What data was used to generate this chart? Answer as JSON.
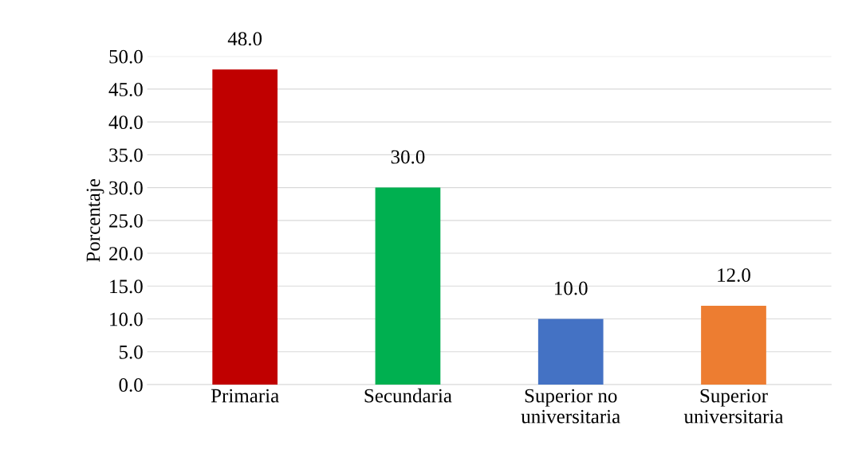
{
  "chart_data": {
    "type": "bar",
    "ylabel": "Porcentaje",
    "categories": [
      "Primaria",
      "Secundaria",
      "Superior no\nuniversitaria",
      "Superior\nuniversitaria"
    ],
    "values": [
      48,
      30,
      10,
      12
    ],
    "colors": [
      "#c00000",
      "#00b050",
      "#4472c4",
      "#ed7d31"
    ],
    "value_labels": [
      "48.0",
      "30.0",
      "10.0",
      "12.0"
    ],
    "ylim": [
      0,
      50
    ],
    "yticks": [
      {
        "value": 0,
        "label": "0.0"
      },
      {
        "value": 5,
        "label": "5.0"
      },
      {
        "value": 10,
        "label": "10.0"
      },
      {
        "value": 15,
        "label": "15.0"
      },
      {
        "value": 20,
        "label": "20.0"
      },
      {
        "value": 25,
        "label": "25.0"
      },
      {
        "value": 30,
        "label": "30.0"
      },
      {
        "value": 35,
        "label": "35.0"
      },
      {
        "value": 40,
        "label": "40.0"
      },
      {
        "value": 45,
        "label": "45.0"
      },
      {
        "value": 50,
        "label": "50.0"
      }
    ],
    "grid": "y"
  }
}
